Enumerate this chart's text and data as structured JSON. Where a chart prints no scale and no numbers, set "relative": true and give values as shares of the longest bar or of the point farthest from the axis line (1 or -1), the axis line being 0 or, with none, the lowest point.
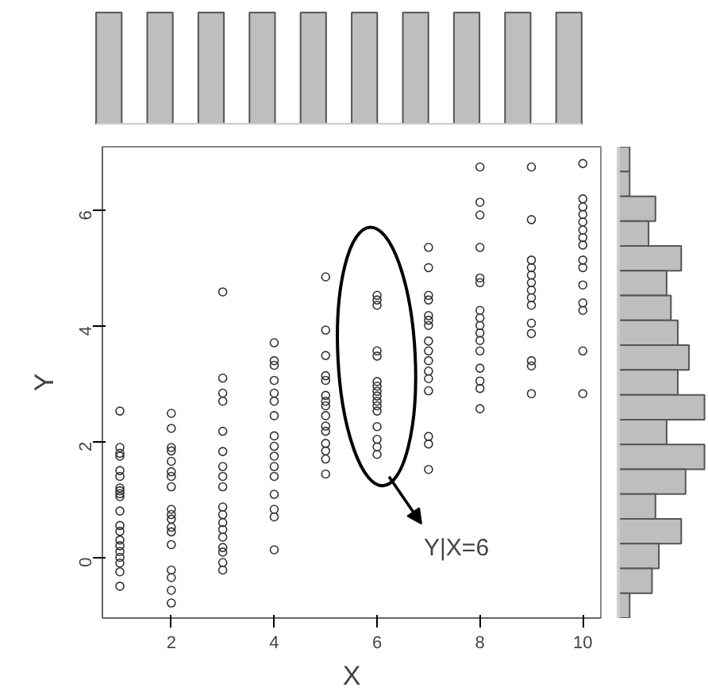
{
  "chart_data": [
    {
      "type": "bar",
      "relative": true,
      "categories": [
        null,
        null,
        null,
        null,
        null,
        null,
        null,
        null,
        null,
        null
      ],
      "values": [
        1,
        1,
        1,
        1,
        1,
        1,
        1,
        1,
        1,
        1
      ],
      "color": "#bebebe"
    },
    {
      "type": "scatter",
      "xlabel": "X",
      "ylabel": "Y",
      "marker": "circle",
      "grid": false,
      "color": "#333333",
      "xlim": [
        0.66,
        10.35
      ],
      "ylim": [
        -1.05,
        7.1
      ],
      "xticks": [
        2,
        4,
        6,
        8,
        10
      ],
      "yticks": [
        0,
        2,
        4,
        6
      ],
      "annotations": [
        "Y|X=6"
      ],
      "x": [
        1,
        1,
        1,
        1,
        1,
        1,
        1,
        1,
        1,
        1,
        1,
        1,
        1,
        1,
        1,
        1,
        1,
        1,
        1,
        1,
        2,
        2,
        2,
        2,
        2,
        2,
        2,
        2,
        2,
        2,
        2,
        2,
        2,
        2,
        2,
        2,
        2,
        2,
        3,
        3,
        3,
        3,
        3,
        3,
        3,
        3,
        3,
        3,
        3,
        3,
        3,
        3,
        3,
        3,
        3,
        3,
        4,
        4,
        4,
        4,
        4,
        4,
        4,
        4,
        4,
        4,
        4,
        4,
        4,
        4,
        4,
        4,
        5,
        5,
        5,
        5,
        5,
        5,
        5,
        5,
        5,
        5,
        5,
        5,
        5,
        5,
        5,
        6,
        6,
        6,
        6,
        6,
        6,
        6,
        6,
        6,
        6,
        6,
        6,
        6,
        6,
        6,
        6,
        7,
        7,
        7,
        7,
        7,
        7,
        7,
        7,
        7,
        7,
        7,
        7,
        7,
        7,
        7,
        7,
        8,
        8,
        8,
        8,
        8,
        8,
        8,
        8,
        8,
        8,
        8,
        8,
        8,
        8,
        8,
        8,
        9,
        9,
        9,
        9,
        9,
        9,
        9,
        9,
        9,
        9,
        9,
        9,
        9,
        9,
        10,
        10,
        10,
        10,
        10,
        10,
        10,
        10,
        10,
        10,
        10,
        10,
        10,
        10,
        10
      ],
      "values": [
        2.53,
        1.9,
        1.8,
        1.75,
        1.5,
        1.4,
        1.2,
        1.15,
        1.1,
        1.05,
        0.8,
        0.55,
        0.45,
        0.3,
        0.2,
        0.1,
        0,
        -0.1,
        -0.25,
        -0.5,
        2.49,
        2.23,
        1.9,
        1.84,
        1.66,
        1.48,
        1.4,
        1.22,
        0.83,
        0.74,
        0.66,
        0.52,
        0.44,
        0.22,
        -0.22,
        -0.35,
        -0.57,
        -0.79,
        4.59,
        3.1,
        2.84,
        2.7,
        2.18,
        1.83,
        1.57,
        1.4,
        1.22,
        0.87,
        0.74,
        0.6,
        0.48,
        0.35,
        0.17,
        0.09,
        -0.09,
        -0.22,
        3.71,
        3.4,
        3.32,
        3.06,
        2.84,
        2.7,
        2.45,
        2.1,
        1.92,
        1.75,
        1.57,
        1.4,
        1.09,
        0.83,
        0.7,
        0.13,
        4.85,
        3.93,
        3.49,
        3.14,
        3.06,
        2.8,
        2.7,
        2.62,
        2.45,
        2.27,
        2.18,
        1.97,
        1.84,
        1.7,
        1.44,
        4.53,
        4.45,
        4.36,
        3.57,
        3.48,
        3.04,
        2.96,
        2.87,
        2.79,
        2.7,
        2.62,
        2.53,
        2.26,
        2.04,
        1.91,
        1.78,
        5.36,
        5.01,
        4.53,
        4.45,
        4.18,
        4.1,
        4.01,
        3.74,
        3.57,
        3.4,
        3.22,
        3.09,
        2.88,
        2.09,
        1.96,
        1.52,
        6.75,
        6.14,
        5.92,
        5.36,
        4.83,
        4.75,
        4.27,
        4.14,
        4.01,
        3.88,
        3.75,
        3.57,
        3.27,
        3.05,
        2.92,
        2.57,
        6.75,
        5.84,
        5.14,
        5.01,
        4.88,
        4.75,
        4.62,
        4.49,
        4.36,
        4.05,
        3.87,
        3.4,
        3.31,
        2.83,
        6.81,
        6.2,
        6.06,
        5.93,
        5.8,
        5.66,
        5.53,
        5.4,
        5.14,
        5.01,
        4.71,
        4.4,
        4.27,
        3.57,
        2.83
      ]
    },
    {
      "type": "bar",
      "orientation": "horizontal",
      "relative": true,
      "categories": [
        null,
        null,
        null,
        null,
        null,
        null,
        null,
        null,
        null,
        null,
        null,
        null,
        null,
        null,
        null,
        null,
        null,
        null,
        null
      ],
      "values": [
        0.13,
        0.13,
        0.43,
        0.35,
        0.73,
        0.56,
        0.61,
        0.69,
        0.82,
        0.69,
        1,
        0.56,
        1,
        0.78,
        0.43,
        0.73,
        0.47,
        0.39,
        0.13
      ],
      "color": "#bebebe"
    }
  ]
}
